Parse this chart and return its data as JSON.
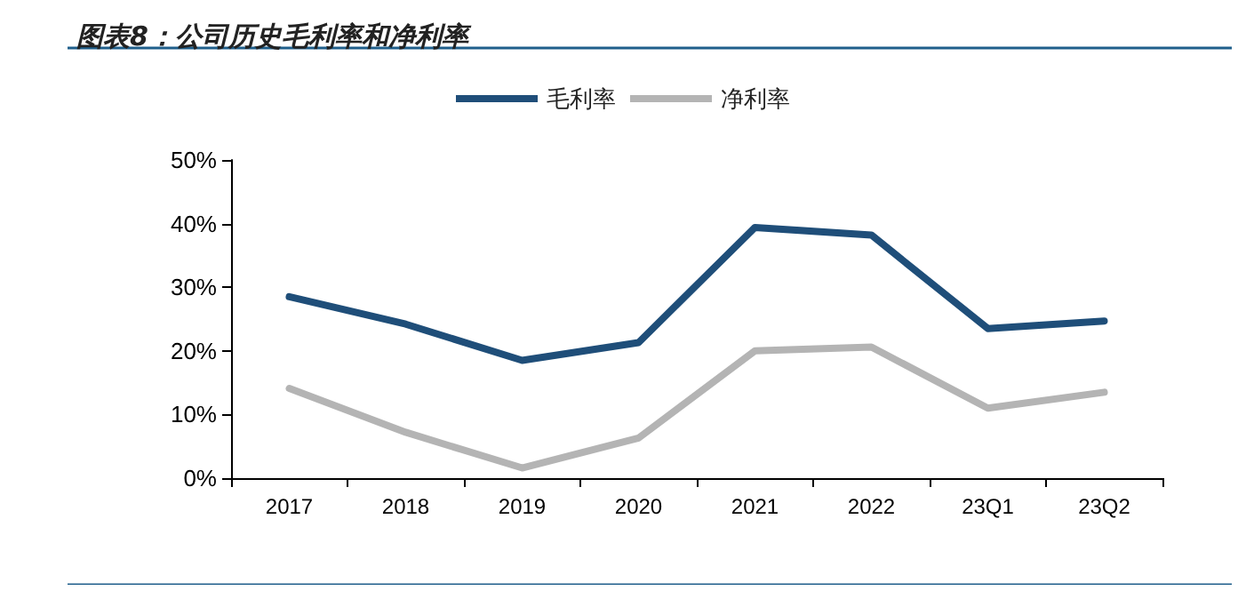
{
  "chart_data": {
    "type": "line",
    "title": "图表8：公司历史毛利率和净利率",
    "categories": [
      "2017",
      "2018",
      "2019",
      "2020",
      "2021",
      "2022",
      "23Q1",
      "23Q2"
    ],
    "series": [
      {
        "name": "毛利率",
        "color": "#1f4e79",
        "values": [
          28.5,
          24.2,
          18.5,
          21.3,
          39.4,
          38.2,
          23.5,
          24.7
        ]
      },
      {
        "name": "净利率",
        "color": "#b4b4b4",
        "values": [
          14.1,
          7.2,
          1.6,
          6.3,
          20.0,
          20.6,
          11.0,
          13.5
        ]
      }
    ],
    "ylim": [
      0,
      50
    ],
    "yticks": [
      {
        "value": 0,
        "label": "0%"
      },
      {
        "value": 10,
        "label": "10%"
      },
      {
        "value": 20,
        "label": "20%"
      },
      {
        "value": 30,
        "label": "30%"
      },
      {
        "value": 40,
        "label": "40%"
      },
      {
        "value": 50,
        "label": "50%"
      }
    ],
    "legend": "top",
    "grid": false,
    "marker": "none",
    "line_style": "solid"
  }
}
